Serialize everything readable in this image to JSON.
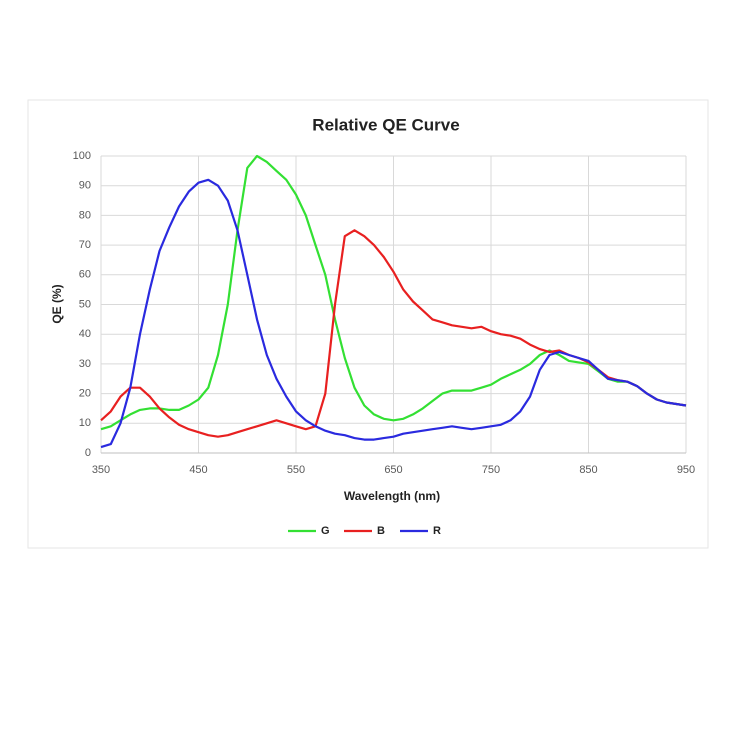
{
  "chart_data": {
    "type": "line",
    "title": "Relative QE Curve",
    "x_label": "Wavelength (nm)",
    "y_label": "QE (%)",
    "x": [
      350,
      360,
      370,
      380,
      390,
      400,
      410,
      420,
      430,
      440,
      450,
      460,
      470,
      480,
      490,
      500,
      510,
      520,
      530,
      540,
      550,
      560,
      570,
      580,
      590,
      600,
      610,
      620,
      630,
      640,
      650,
      660,
      670,
      680,
      690,
      700,
      710,
      720,
      730,
      740,
      750,
      760,
      770,
      780,
      790,
      800,
      810,
      820,
      830,
      840,
      850,
      860,
      870,
      880,
      890,
      900,
      910,
      920,
      930,
      940,
      950
    ],
    "series": [
      {
        "name": "G",
        "color": "#33e033",
        "values": [
          8,
          9,
          11,
          13,
          14.5,
          15,
          15,
          14.5,
          14.5,
          16,
          18,
          22,
          33,
          50,
          75,
          96,
          100,
          98,
          95,
          92,
          87,
          80,
          70,
          60,
          45,
          32,
          22,
          16,
          13,
          11.5,
          11,
          11.5,
          13,
          15,
          17.5,
          20,
          21,
          21,
          21,
          22,
          23,
          25,
          26.5,
          28,
          30,
          33,
          34.5,
          33,
          31,
          30.5,
          30,
          27.5,
          25,
          24,
          24,
          22.5,
          20,
          18,
          17,
          16.5,
          16
        ]
      },
      {
        "name": "B",
        "color": "#e82020",
        "values": [
          11,
          14,
          19,
          22,
          22,
          19,
          15,
          12,
          9.5,
          8,
          7,
          6,
          5.5,
          6,
          7,
          8,
          9,
          10,
          11,
          10,
          9,
          8,
          9,
          20,
          50,
          73,
          75,
          73,
          70,
          66,
          61,
          55,
          51,
          48,
          45,
          44,
          43,
          42.5,
          42,
          42.5,
          41,
          40,
          39.5,
          38.5,
          36.5,
          35,
          34,
          34.5,
          33,
          32,
          30.5,
          28,
          25.5,
          24.5,
          24,
          22.5,
          20,
          18,
          17,
          16.5,
          16
        ]
      },
      {
        "name": "R",
        "color": "#2a2adf",
        "values": [
          2,
          3,
          10,
          22,
          40,
          55,
          68,
          76,
          83,
          88,
          91,
          92,
          90,
          85,
          75,
          60,
          45,
          33,
          25,
          19,
          14,
          11,
          9,
          7.5,
          6.5,
          6,
          5,
          4.5,
          4.5,
          5,
          5.5,
          6.5,
          7,
          7.5,
          8,
          8.5,
          9,
          8.5,
          8,
          8.5,
          9,
          9.5,
          11,
          14,
          19,
          28,
          33,
          34,
          33,
          32,
          31,
          28,
          25,
          24.5,
          24,
          22.5,
          20,
          18,
          17,
          16.5,
          16
        ]
      }
    ],
    "xlim": [
      350,
      950
    ],
    "xticks": [
      350,
      450,
      550,
      650,
      750,
      850,
      950
    ],
    "ylim": [
      0,
      100
    ],
    "yticks": [
      0,
      10,
      20,
      30,
      40,
      50,
      60,
      70,
      80,
      90,
      100
    ],
    "grid": true,
    "legend": "bottom"
  }
}
